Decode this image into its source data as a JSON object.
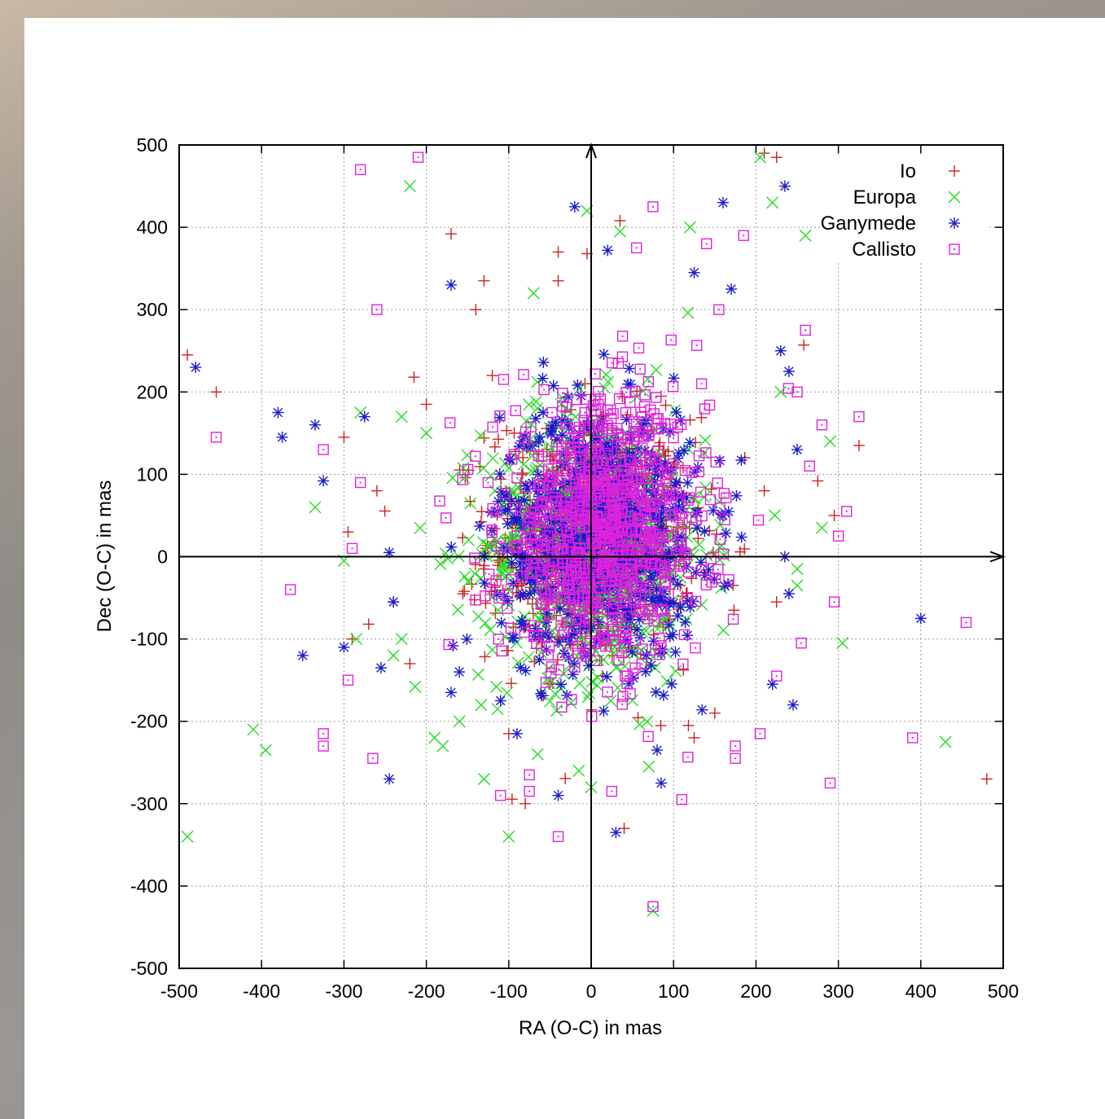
{
  "chart_data": {
    "type": "scatter",
    "title": "",
    "xlabel": "RA (O-C) in mas",
    "ylabel": "Dec (O-C) in mas",
    "xlim": [
      -500,
      500
    ],
    "ylim": [
      -500,
      500
    ],
    "xticks": [
      -500,
      -400,
      -300,
      -200,
      -100,
      0,
      100,
      200,
      300,
      400,
      500
    ],
    "yticks": [
      -500,
      -400,
      -300,
      -200,
      -100,
      0,
      100,
      200,
      300,
      400,
      500
    ],
    "grid": true,
    "zero_axes_with_arrows": true,
    "legend_position": "top-right",
    "series": [
      {
        "name": "Io",
        "marker": "plus",
        "color": "#cc2222",
        "outliers": [
          [
            -490,
            245
          ],
          [
            -455,
            200
          ],
          [
            -170,
            392
          ],
          [
            -130,
            335
          ],
          [
            -40,
            335
          ],
          [
            35,
            408
          ],
          [
            225,
            485
          ],
          [
            258,
            257
          ],
          [
            -295,
            30
          ],
          [
            -290,
            -100
          ],
          [
            -270,
            -82
          ],
          [
            -220,
            -130
          ],
          [
            -200,
            185
          ],
          [
            -215,
            218
          ],
          [
            -140,
            300
          ],
          [
            295,
            50
          ],
          [
            325,
            135
          ],
          [
            275,
            92
          ],
          [
            -5,
            368
          ],
          [
            -40,
            370
          ],
          [
            210,
            490
          ],
          [
            -260,
            80
          ],
          [
            -240,
            -55
          ],
          [
            118,
            -205
          ],
          [
            125,
            -220
          ],
          [
            150,
            -190
          ],
          [
            210,
            80
          ],
          [
            225,
            -55
          ],
          [
            -100,
            -215
          ],
          [
            -80,
            -300
          ],
          [
            40,
            -330
          ],
          [
            480,
            -270
          ],
          [
            -300,
            145
          ],
          [
            -120,
            220
          ]
        ],
        "cluster": {
          "count": 700,
          "cx": 0,
          "cy": 20,
          "sx": 62,
          "sy": 75
        }
      },
      {
        "name": "Europa",
        "marker": "cross",
        "color": "#22dd22",
        "outliers": [
          [
            -220,
            450
          ],
          [
            205,
            485
          ],
          [
            220,
            430
          ],
          [
            260,
            390
          ],
          [
            -5,
            420
          ],
          [
            120,
            400
          ],
          [
            35,
            395
          ],
          [
            -410,
            -210
          ],
          [
            -395,
            -235
          ],
          [
            -490,
            -340
          ],
          [
            -335,
            60
          ],
          [
            -300,
            -5
          ],
          [
            -285,
            -100
          ],
          [
            -240,
            -120
          ],
          [
            -230,
            -100
          ],
          [
            -190,
            -220
          ],
          [
            -180,
            -230
          ],
          [
            -160,
            -200
          ],
          [
            -100,
            -340
          ],
          [
            -130,
            -270
          ],
          [
            -65,
            -240
          ],
          [
            -15,
            -260
          ],
          [
            0,
            -280
          ],
          [
            70,
            -255
          ],
          [
            75,
            -430
          ],
          [
            290,
            140
          ],
          [
            305,
            -105
          ],
          [
            430,
            -225
          ],
          [
            250,
            -15
          ],
          [
            250,
            -35
          ],
          [
            -280,
            175
          ],
          [
            -200,
            150
          ],
          [
            -230,
            170
          ],
          [
            280,
            35
          ],
          [
            230,
            200
          ],
          [
            -70,
            320
          ]
        ],
        "cluster": {
          "count": 750,
          "cx": 5,
          "cy": 15,
          "sx": 68,
          "sy": 82
        }
      },
      {
        "name": "Ganymede",
        "marker": "star",
        "color": "#1a1acc",
        "outliers": [
          [
            -480,
            230
          ],
          [
            -380,
            175
          ],
          [
            -375,
            145
          ],
          [
            -335,
            160
          ],
          [
            -325,
            92
          ],
          [
            -350,
            -120
          ],
          [
            -300,
            -110
          ],
          [
            -255,
            -135
          ],
          [
            -245,
            -270
          ],
          [
            -275,
            170
          ],
          [
            -170,
            330
          ],
          [
            -20,
            425
          ],
          [
            20,
            372
          ],
          [
            160,
            430
          ],
          [
            235,
            450
          ],
          [
            -245,
            5
          ],
          [
            -240,
            -55
          ],
          [
            -160,
            -140
          ],
          [
            -170,
            -165
          ],
          [
            -40,
            -290
          ],
          [
            30,
            -335
          ],
          [
            85,
            -275
          ],
          [
            80,
            -235
          ],
          [
            220,
            -155
          ],
          [
            245,
            -180
          ],
          [
            240,
            -45
          ],
          [
            235,
            0
          ],
          [
            400,
            -75
          ],
          [
            250,
            130
          ],
          [
            230,
            250
          ],
          [
            240,
            225
          ],
          [
            170,
            325
          ],
          [
            125,
            345
          ],
          [
            -110,
            -175
          ],
          [
            -90,
            -215
          ]
        ],
        "cluster": {
          "count": 800,
          "cx": 10,
          "cy": 30,
          "sx": 60,
          "sy": 75
        }
      },
      {
        "name": "Callisto",
        "marker": "square",
        "color": "#dd22dd",
        "outliers": [
          [
            -280,
            470
          ],
          [
            -210,
            485
          ],
          [
            -455,
            145
          ],
          [
            -325,
            130
          ],
          [
            -365,
            -40
          ],
          [
            -325,
            -215
          ],
          [
            -325,
            -230
          ],
          [
            -295,
            -150
          ],
          [
            -265,
            -245
          ],
          [
            -290,
            10
          ],
          [
            -280,
            90
          ],
          [
            -260,
            300
          ],
          [
            -40,
            -340
          ],
          [
            -110,
            -290
          ],
          [
            -75,
            -265
          ],
          [
            -75,
            -285
          ],
          [
            25,
            -285
          ],
          [
            75,
            -425
          ],
          [
            110,
            -295
          ],
          [
            175,
            -230
          ],
          [
            175,
            -245
          ],
          [
            205,
            -215
          ],
          [
            225,
            -145
          ],
          [
            255,
            -105
          ],
          [
            290,
            -275
          ],
          [
            295,
            -55
          ],
          [
            300,
            25
          ],
          [
            325,
            170
          ],
          [
            310,
            55
          ],
          [
            280,
            160
          ],
          [
            260,
            275
          ],
          [
            390,
            -220
          ],
          [
            455,
            -80
          ],
          [
            75,
            425
          ],
          [
            55,
            375
          ],
          [
            140,
            380
          ],
          [
            185,
            390
          ],
          [
            155,
            300
          ],
          [
            250,
            200
          ],
          [
            265,
            110
          ]
        ],
        "cluster": {
          "count": 850,
          "cx": 15,
          "cy": 30,
          "sx": 62,
          "sy": 80
        }
      }
    ]
  }
}
